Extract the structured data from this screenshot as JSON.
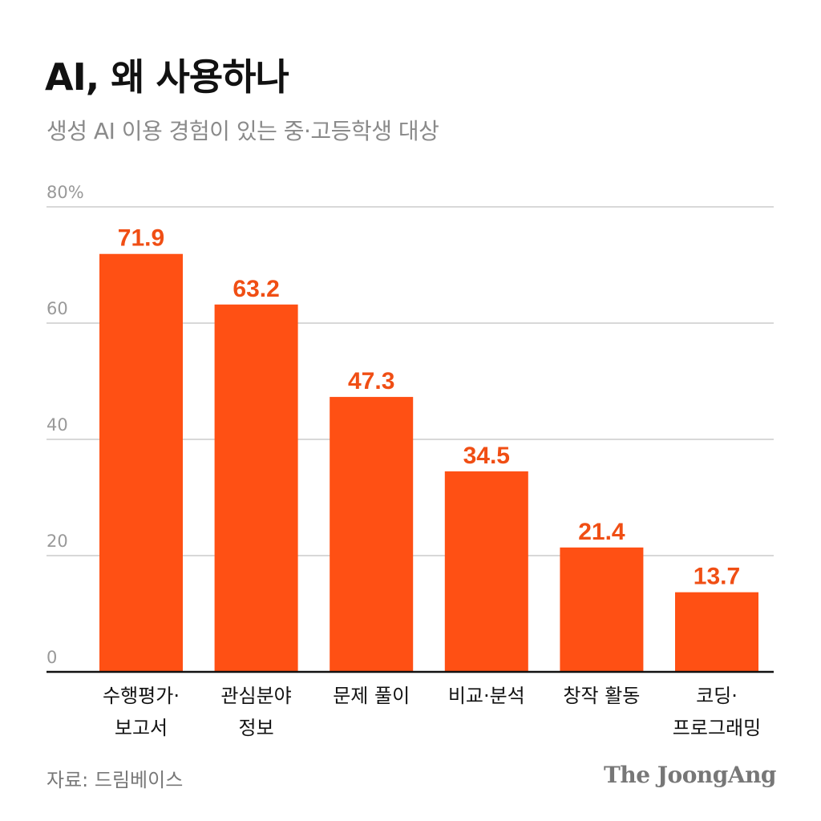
{
  "title": "AI, 왜 사용하나",
  "subtitle": "생성 AI 이용 경험이 있는 중·고등학생 대상",
  "source": "자료: 드림베이스",
  "logo": "The JoongAng",
  "colors": {
    "bar": "#FF5014",
    "value_label": "#F04E14",
    "grid": "#cccccc",
    "axis": "#111111",
    "tick": "#999999"
  },
  "chart_data": {
    "type": "bar",
    "categories": [
      [
        "수행평가·",
        "보고서"
      ],
      [
        "관심분야",
        "정보"
      ],
      [
        "문제 풀이"
      ],
      [
        "비교·분석"
      ],
      [
        "창작 활동"
      ],
      [
        "코딩·",
        "프로그래밍"
      ]
    ],
    "values": [
      71.9,
      63.2,
      47.3,
      34.5,
      21.4,
      13.7
    ],
    "value_labels": [
      "71.9",
      "63.2",
      "47.3",
      "34.5",
      "21.4",
      "13.7"
    ],
    "ylim": [
      0,
      80
    ],
    "yticks": [
      0,
      20,
      40,
      60,
      80
    ],
    "ytick_labels": [
      "0",
      "20",
      "40",
      "60",
      "80%"
    ],
    "grid": true
  }
}
